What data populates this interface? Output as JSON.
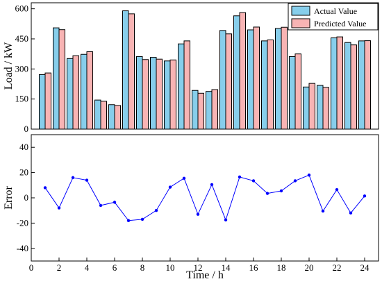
{
  "chart_data": [
    {
      "type": "bar",
      "categories": [
        1,
        2,
        3,
        4,
        5,
        6,
        7,
        8,
        9,
        10,
        11,
        12,
        13,
        14,
        15,
        16,
        17,
        18,
        19,
        20,
        21,
        22,
        23,
        24
      ],
      "series": [
        {
          "name": "Actual Value",
          "color": "#87CEEB",
          "values": [
            272,
            505,
            352,
            373,
            145,
            122,
            590,
            362,
            358,
            340,
            425,
            193,
            188,
            492,
            565,
            495,
            440,
            502,
            362,
            210,
            218,
            455,
            432,
            440
          ]
        },
        {
          "name": "Predicted Value",
          "color": "#F8B4B4",
          "values": [
            280,
            496,
            366,
            386,
            139,
            118,
            575,
            347,
            349,
            345,
            440,
            179,
            197,
            475,
            581,
            509,
            445,
            508,
            375,
            228,
            208,
            460,
            420,
            441
          ]
        }
      ],
      "xlabel": "",
      "ylabel": "Load / kW",
      "ylim": [
        0,
        630
      ],
      "yticks": [
        0,
        150,
        300,
        450,
        600
      ],
      "legend": "top-right",
      "grid": false
    },
    {
      "type": "line",
      "x": [
        1,
        2,
        3,
        4,
        5,
        6,
        7,
        8,
        9,
        10,
        11,
        12,
        13,
        14,
        15,
        16,
        17,
        18,
        19,
        20,
        21,
        22,
        23,
        24
      ],
      "series": [
        {
          "color": "#0000FF",
          "values": [
            8,
            -8,
            16,
            14,
            -6,
            -3.5,
            -18,
            -17,
            -10,
            8.5,
            15.5,
            -13,
            10.5,
            -17.5,
            16.5,
            13.5,
            3.5,
            5.5,
            13.5,
            18,
            -10.5,
            6.5,
            -12,
            1.5
          ]
        }
      ],
      "xlabel": "Time / h",
      "ylabel": "Error",
      "xlim": [
        0,
        25
      ],
      "ylim": [
        -50,
        50
      ],
      "xticks": [
        0,
        2,
        4,
        6,
        8,
        10,
        12,
        14,
        16,
        18,
        20,
        22,
        24
      ],
      "yticks": [
        -40,
        -20,
        0,
        20,
        40
      ],
      "grid": false
    }
  ]
}
